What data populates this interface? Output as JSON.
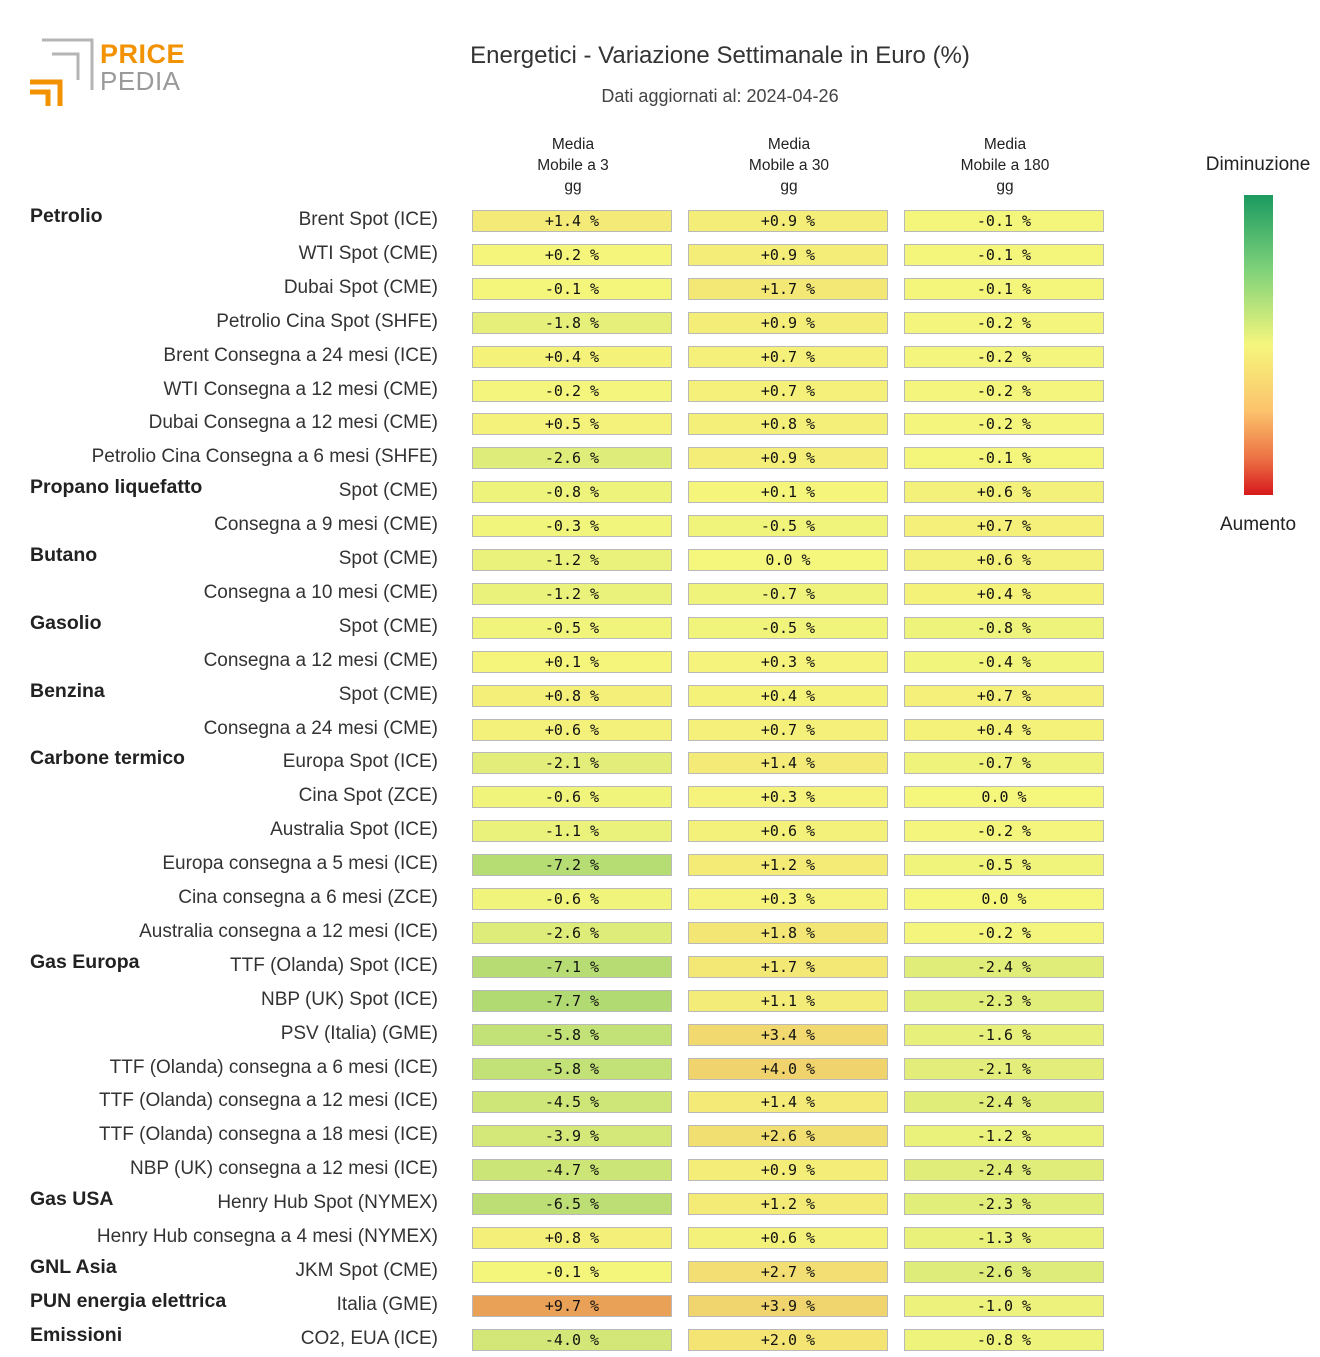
{
  "logo": {
    "line1": "PRICE",
    "line2": "PEDIA"
  },
  "chart_data": {
    "type": "heatmap",
    "title": "Energetici - Variazione Settimanale in Euro (%)",
    "subtitle": "Dati aggiornati al: 2024-04-26",
    "columns": [
      "Media\nMobile a 3\ngg",
      "Media\nMobile a 30\ngg",
      "Media\nMobile a 180\ngg"
    ],
    "legend": {
      "top": "Diminuzione",
      "bottom": "Aumento"
    },
    "colors": {
      "max_increase": "#d7191c",
      "neutral": "#f5f67c",
      "max_decrease": "#1b9a60"
    },
    "color_scale_limit": 25,
    "rows": [
      {
        "group": "Petrolio",
        "label": "Brent Spot (ICE)",
        "values": [
          1.4,
          0.9,
          -0.1
        ],
        "text": [
          "+1.4 %",
          "+0.9 %",
          "-0.1 %"
        ]
      },
      {
        "group": "",
        "label": "WTI Spot (CME)",
        "values": [
          0.2,
          0.9,
          -0.1
        ],
        "text": [
          "+0.2 %",
          "+0.9 %",
          "-0.1 %"
        ]
      },
      {
        "group": "",
        "label": "Dubai Spot (CME)",
        "values": [
          -0.1,
          1.7,
          -0.1
        ],
        "text": [
          "-0.1 %",
          "+1.7 %",
          "-0.1 %"
        ]
      },
      {
        "group": "",
        "label": "Petrolio Cina Spot (SHFE)",
        "values": [
          -1.8,
          0.9,
          -0.2
        ],
        "text": [
          "-1.8 %",
          "+0.9 %",
          "-0.2 %"
        ]
      },
      {
        "group": "",
        "label": "Brent Consegna a 24 mesi (ICE)",
        "values": [
          0.4,
          0.7,
          -0.2
        ],
        "text": [
          "+0.4 %",
          "+0.7 %",
          "-0.2 %"
        ]
      },
      {
        "group": "",
        "label": "WTI Consegna a 12 mesi (CME)",
        "values": [
          -0.2,
          0.7,
          -0.2
        ],
        "text": [
          "-0.2 %",
          "+0.7 %",
          "-0.2 %"
        ]
      },
      {
        "group": "",
        "label": "Dubai Consegna a 12 mesi (CME)",
        "values": [
          0.5,
          0.8,
          -0.2
        ],
        "text": [
          "+0.5 %",
          "+0.8 %",
          "-0.2 %"
        ]
      },
      {
        "group": "",
        "label": "Petrolio Cina Consegna a 6 mesi (SHFE)",
        "values": [
          -2.6,
          0.9,
          -0.1
        ],
        "text": [
          "-2.6 %",
          "+0.9 %",
          "-0.1 %"
        ]
      },
      {
        "group": "Propano liquefatto",
        "label": "Spot (CME)",
        "values": [
          -0.8,
          0.1,
          0.6
        ],
        "text": [
          "-0.8 %",
          "+0.1 %",
          "+0.6 %"
        ]
      },
      {
        "group": "",
        "label": "Consegna a 9 mesi (CME)",
        "values": [
          -0.3,
          -0.5,
          0.7
        ],
        "text": [
          "-0.3 %",
          "-0.5 %",
          "+0.7 %"
        ]
      },
      {
        "group": "Butano",
        "label": "Spot (CME)",
        "values": [
          -1.2,
          0.0,
          0.6
        ],
        "text": [
          "-1.2 %",
          "0.0 %",
          "+0.6 %"
        ]
      },
      {
        "group": "",
        "label": "Consegna a 10 mesi (CME)",
        "values": [
          -1.2,
          -0.7,
          0.4
        ],
        "text": [
          "-1.2 %",
          "-0.7 %",
          "+0.4 %"
        ]
      },
      {
        "group": "Gasolio",
        "label": "Spot (CME)",
        "values": [
          -0.5,
          -0.5,
          -0.8
        ],
        "text": [
          "-0.5 %",
          "-0.5 %",
          "-0.8 %"
        ]
      },
      {
        "group": "",
        "label": "Consegna a 12 mesi (CME)",
        "values": [
          0.1,
          0.3,
          -0.4
        ],
        "text": [
          "+0.1 %",
          "+0.3 %",
          "-0.4 %"
        ]
      },
      {
        "group": "Benzina",
        "label": "Spot (CME)",
        "values": [
          0.8,
          0.4,
          0.7
        ],
        "text": [
          "+0.8 %",
          "+0.4 %",
          "+0.7 %"
        ]
      },
      {
        "group": "",
        "label": "Consegna a 24 mesi (CME)",
        "values": [
          0.6,
          0.7,
          0.4
        ],
        "text": [
          "+0.6 %",
          "+0.7 %",
          "+0.4 %"
        ]
      },
      {
        "group": "Carbone termico",
        "label": "Europa Spot (ICE)",
        "values": [
          -2.1,
          1.4,
          -0.7
        ],
        "text": [
          "-2.1 %",
          "+1.4 %",
          "-0.7 %"
        ]
      },
      {
        "group": "",
        "label": "Cina Spot (ZCE)",
        "values": [
          -0.6,
          0.3,
          0.0
        ],
        "text": [
          "-0.6 %",
          "+0.3 %",
          "0.0 %"
        ]
      },
      {
        "group": "",
        "label": "Australia Spot (ICE)",
        "values": [
          -1.1,
          0.6,
          -0.2
        ],
        "text": [
          "-1.1 %",
          "+0.6 %",
          "-0.2 %"
        ]
      },
      {
        "group": "",
        "label": "Europa consegna a 5 mesi (ICE)",
        "values": [
          -7.2,
          1.2,
          -0.5
        ],
        "text": [
          "-7.2 %",
          "+1.2 %",
          "-0.5 %"
        ]
      },
      {
        "group": "",
        "label": "Cina consegna a 6 mesi (ZCE)",
        "values": [
          -0.6,
          0.3,
          0.0
        ],
        "text": [
          "-0.6 %",
          "+0.3 %",
          "0.0 %"
        ]
      },
      {
        "group": "",
        "label": "Australia consegna a 12 mesi (ICE)",
        "values": [
          -2.6,
          1.8,
          -0.2
        ],
        "text": [
          "-2.6 %",
          "+1.8 %",
          "-0.2 %"
        ]
      },
      {
        "group": "Gas Europa",
        "label": "TTF (Olanda) Spot (ICE)",
        "values": [
          -7.1,
          1.7,
          -2.4
        ],
        "text": [
          "-7.1 %",
          "+1.7 %",
          "-2.4 %"
        ]
      },
      {
        "group": "",
        "label": "NBP (UK) Spot (ICE)",
        "values": [
          -7.7,
          1.1,
          -2.3
        ],
        "text": [
          "-7.7 %",
          "+1.1 %",
          "-2.3 %"
        ]
      },
      {
        "group": "",
        "label": "PSV (Italia) (GME)",
        "values": [
          -5.8,
          3.4,
          -1.6
        ],
        "text": [
          "-5.8 %",
          "+3.4 %",
          "-1.6 %"
        ]
      },
      {
        "group": "",
        "label": "TTF (Olanda) consegna a 6 mesi (ICE)",
        "values": [
          -5.8,
          4.0,
          -2.1
        ],
        "text": [
          "-5.8 %",
          "+4.0 %",
          "-2.1 %"
        ]
      },
      {
        "group": "",
        "label": "TTF (Olanda) consegna a 12 mesi (ICE)",
        "values": [
          -4.5,
          1.4,
          -2.4
        ],
        "text": [
          "-4.5 %",
          "+1.4 %",
          "-2.4 %"
        ]
      },
      {
        "group": "",
        "label": "TTF (Olanda) consegna a 18 mesi (ICE)",
        "values": [
          -3.9,
          2.6,
          -1.2
        ],
        "text": [
          "-3.9 %",
          "+2.6 %",
          "-1.2 %"
        ]
      },
      {
        "group": "",
        "label": "NBP (UK) consegna a 12 mesi (ICE)",
        "values": [
          -4.7,
          0.9,
          -2.4
        ],
        "text": [
          "-4.7 %",
          "+0.9 %",
          "-2.4 %"
        ]
      },
      {
        "group": "Gas USA",
        "label": "Henry Hub Spot (NYMEX)",
        "values": [
          -6.5,
          1.2,
          -2.3
        ],
        "text": [
          "-6.5 %",
          "+1.2 %",
          "-2.3 %"
        ]
      },
      {
        "group": "",
        "label": "Henry Hub consegna a 4 mesi (NYMEX)",
        "values": [
          0.8,
          0.6,
          -1.3
        ],
        "text": [
          "+0.8 %",
          "+0.6 %",
          "-1.3 %"
        ]
      },
      {
        "group": "GNL Asia",
        "label": "JKM Spot (CME)",
        "values": [
          -0.1,
          2.7,
          -2.6
        ],
        "text": [
          "-0.1 %",
          "+2.7 %",
          "-2.6 %"
        ]
      },
      {
        "group": "PUN energia elettrica",
        "label": "Italia (GME)",
        "values": [
          9.7,
          3.9,
          -1.0
        ],
        "text": [
          "+9.7 %",
          "+3.9 %",
          "-1.0 %"
        ]
      },
      {
        "group": "Emissioni",
        "label": "CO2, EUA (ICE)",
        "values": [
          -4.0,
          2.0,
          -0.8
        ],
        "text": [
          "-4.0 %",
          "+2.0 %",
          "-0.8 %"
        ]
      }
    ]
  }
}
